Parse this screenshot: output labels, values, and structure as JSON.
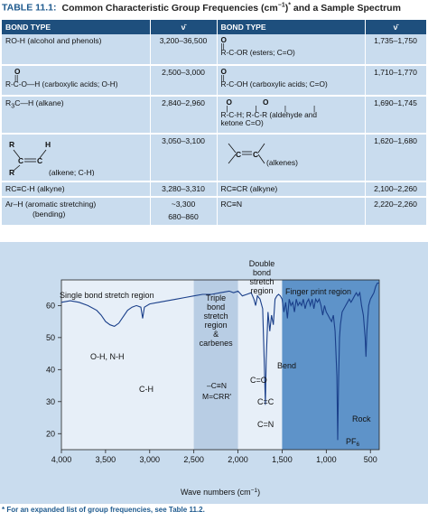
{
  "caption": {
    "label": "TABLE 11.1:",
    "title": "Common Characteristic Group Frequencies (cm",
    "title_sup": "−1",
    "title_end": ")",
    "title_star": "*",
    "title_tail": " and a Sample Spectrum"
  },
  "table": {
    "headers": [
      "BOND TYPE",
      "ν̄",
      "BOND TYPE",
      "ν̄"
    ],
    "rows": [
      {
        "left": "RO-H (alcohol and phenols)",
        "left_value": "3,200–36,500",
        "right": "R-C-OR (esters; C=O)",
        "right_value": "1,735–1,750"
      },
      {
        "left": "R-C-O—H (carboxylic acids; O-H)",
        "left_value": "2,500–3,000",
        "right": "R-C-OH (carboxylic acids; C=O)",
        "right_value": "1,710–1,770"
      },
      {
        "left": "R3C—H (alkane)",
        "left_value": "2,840–2,960",
        "right": "R-C-H; R-C-R (aldehyde and ketone C=O)",
        "right_value": "1,690–1,745"
      },
      {
        "left": "R (alkene; C-H)",
        "left_value": "3,050–3,100",
        "right": "(alkenes)",
        "right_value": "1,620–1,680"
      },
      {
        "left": "RC≡C-H (alkyne)",
        "left_value": "3,280–3,310",
        "right": "RC≡CR (alkyne)",
        "right_value": "2,100–2,260"
      },
      {
        "left": "Ar–H (aromatic stretching)",
        "left_sub": "(bending)",
        "left_value": "~3,300",
        "left_value_2": "680–860",
        "right": "RC≡N",
        "right_value": "2,220–2,260"
      }
    ],
    "chem_bits": {
      "O": "O",
      "dbl": "||",
      "R": "R",
      "H": "H",
      "C": "C",
      "Cdot": "C",
      "aldehyde": "R-C-H; R-C-R (aldehyde and",
      "ketone": "ketone C=O)",
      "r3c": "R",
      "r3c_sub": "3",
      "r3c_rest": "C—H (alkane)"
    }
  },
  "chart_data": {
    "type": "line",
    "xlabel": "Wave numbers (cm",
    "xlabel_sup": "−1",
    "xlabel_end": ")",
    "x_ticks": [
      "4,000",
      "3,500",
      "3,000",
      "2,500",
      "2,000",
      "1,500",
      "1,000",
      "500"
    ],
    "y_ticks": [
      "20",
      "30",
      "40",
      "50",
      "60"
    ],
    "xlim": [
      4000,
      400
    ],
    "ylim": [
      15,
      68
    ],
    "regions": [
      {
        "label": "Single bond stretch region",
        "from": 4000,
        "to": 2500
      },
      {
        "label_lines": [
          "Triple",
          "bond",
          "stretch",
          "region",
          "&",
          "carbenes"
        ],
        "from": 2500,
        "to": 2000
      },
      {
        "label_lines": [
          "Double",
          "bond",
          "stretch",
          "region"
        ],
        "from": 2000,
        "to": 1500
      },
      {
        "label": "Finger print region",
        "from": 1500,
        "to": 400
      }
    ],
    "annotations": {
      "oh_nh": "O-H, N-H",
      "ch": "C-H",
      "triple_1": "–C≡N",
      "triple_2": "M=CRR'",
      "co": "C=O",
      "cc": "C=C",
      "cn": "C=N",
      "bend": "Bend",
      "rock": "Rock",
      "pf6": "PF",
      "pf6_sub": "6"
    },
    "spectrum": [
      [
        4000,
        61
      ],
      [
        3900,
        61.5
      ],
      [
        3800,
        61
      ],
      [
        3700,
        60
      ],
      [
        3600,
        58.5
      ],
      [
        3550,
        57
      ],
      [
        3500,
        55
      ],
      [
        3450,
        54
      ],
      [
        3400,
        53.5
      ],
      [
        3350,
        54.5
      ],
      [
        3300,
        56.5
      ],
      [
        3250,
        58.5
      ],
      [
        3200,
        59.5
      ],
      [
        3150,
        60
      ],
      [
        3100,
        59.5
      ],
      [
        3080,
        56
      ],
      [
        3060,
        59.5
      ],
      [
        3000,
        60.5
      ],
      [
        2900,
        61
      ],
      [
        2800,
        61.5
      ],
      [
        2700,
        62
      ],
      [
        2600,
        62.5
      ],
      [
        2500,
        63
      ],
      [
        2400,
        63.5
      ],
      [
        2300,
        63.5
      ],
      [
        2200,
        64
      ],
      [
        2100,
        64.5
      ],
      [
        2050,
        64
      ],
      [
        2000,
        64.5
      ],
      [
        1950,
        63
      ],
      [
        1900,
        63.5
      ],
      [
        1850,
        64
      ],
      [
        1820,
        62
      ],
      [
        1800,
        60
      ],
      [
        1780,
        63
      ],
      [
        1750,
        62
      ],
      [
        1720,
        59
      ],
      [
        1700,
        40
      ],
      [
        1690,
        29
      ],
      [
        1680,
        43
      ],
      [
        1660,
        58
      ],
      [
        1640,
        52
      ],
      [
        1620,
        57
      ],
      [
        1600,
        54
      ],
      [
        1580,
        62
      ],
      [
        1560,
        63
      ],
      [
        1540,
        63.5
      ],
      [
        1520,
        63
      ],
      [
        1500,
        62
      ],
      [
        1480,
        58
      ],
      [
        1460,
        61
      ],
      [
        1440,
        56
      ],
      [
        1420,
        62
      ],
      [
        1400,
        60
      ],
      [
        1380,
        61
      ],
      [
        1360,
        58
      ],
      [
        1340,
        62
      ],
      [
        1320,
        60
      ],
      [
        1300,
        61
      ],
      [
        1280,
        60
      ],
      [
        1260,
        62
      ],
      [
        1240,
        59
      ],
      [
        1220,
        61
      ],
      [
        1200,
        62
      ],
      [
        1180,
        60
      ],
      [
        1160,
        62
      ],
      [
        1140,
        59
      ],
      [
        1120,
        62
      ],
      [
        1100,
        61
      ],
      [
        1080,
        62
      ],
      [
        1060,
        60
      ],
      [
        1040,
        57
      ],
      [
        1020,
        60
      ],
      [
        1000,
        58
      ],
      [
        980,
        57
      ],
      [
        960,
        56
      ],
      [
        940,
        55
      ],
      [
        920,
        57
      ],
      [
        900,
        52
      ],
      [
        880,
        38
      ],
      [
        870,
        18
      ],
      [
        860,
        37
      ],
      [
        850,
        50
      ],
      [
        840,
        54
      ],
      [
        820,
        58
      ],
      [
        800,
        59
      ],
      [
        780,
        60
      ],
      [
        760,
        61
      ],
      [
        740,
        62
      ],
      [
        720,
        61
      ],
      [
        700,
        62
      ],
      [
        680,
        63
      ],
      [
        660,
        64
      ],
      [
        640,
        63
      ],
      [
        620,
        64
      ],
      [
        600,
        60
      ],
      [
        580,
        57
      ],
      [
        560,
        50
      ],
      [
        550,
        44
      ],
      [
        540,
        52
      ],
      [
        520,
        60
      ],
      [
        500,
        62
      ],
      [
        480,
        63
      ],
      [
        460,
        64
      ],
      [
        440,
        66
      ],
      [
        420,
        67
      ],
      [
        400,
        67
      ]
    ]
  },
  "footnote": "* For an expanded list of group frequencies, see Table 11.2."
}
